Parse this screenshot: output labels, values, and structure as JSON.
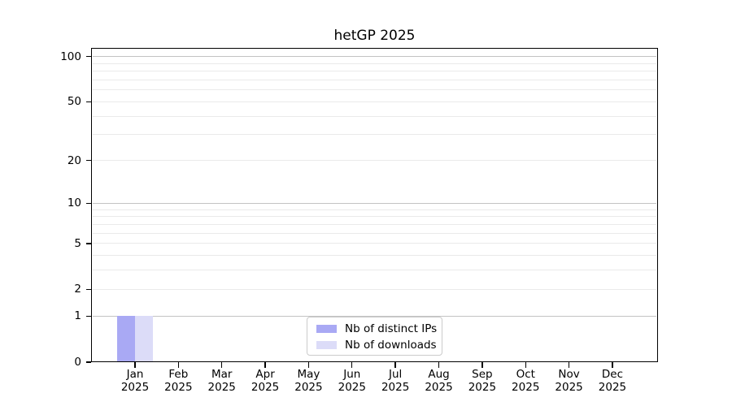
{
  "title": "hetGP 2025",
  "chart_data": {
    "type": "bar",
    "title": "hetGP 2025",
    "categories": [
      "Jan",
      "Feb",
      "Mar",
      "Apr",
      "May",
      "Jun",
      "Jul",
      "Aug",
      "Sep",
      "Oct",
      "Nov",
      "Dec"
    ],
    "category_year": "2025",
    "series": [
      {
        "name": "Nb of distinct IPs",
        "color": "#a9a9f4",
        "values": [
          1,
          0,
          0,
          0,
          0,
          0,
          0,
          0,
          0,
          0,
          0,
          0
        ]
      },
      {
        "name": "Nb of downloads",
        "color": "#dcdcf8",
        "values": [
          1,
          0,
          0,
          0,
          0,
          0,
          0,
          0,
          0,
          0,
          0,
          0
        ]
      }
    ],
    "yscale": "log1p",
    "ylim": [
      0,
      114
    ],
    "yticks": [
      0,
      1,
      2,
      5,
      10,
      20,
      50,
      100
    ],
    "grid": {
      "major_values": [
        1,
        10,
        100
      ],
      "minor_values": [
        2,
        3,
        4,
        5,
        6,
        7,
        8,
        9,
        20,
        30,
        40,
        50,
        60,
        70,
        80,
        90
      ],
      "major_color": "#c3c3c3",
      "minor_color": "#eaeaea"
    },
    "legend_position": "lower center",
    "background_color": "#ffffff",
    "axis_color": "#000000"
  }
}
